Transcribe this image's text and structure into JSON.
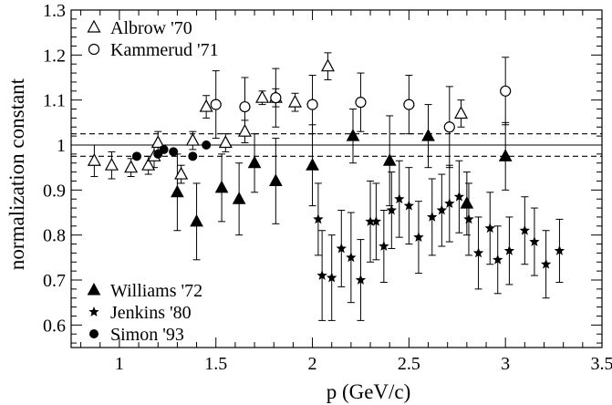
{
  "chart_data": {
    "type": "scatter",
    "title": "",
    "xlabel": "p (GeV/c)",
    "ylabel": "normalization constant",
    "xlim": [
      0.75,
      3.5
    ],
    "ylim": [
      0.55,
      1.3
    ],
    "xticks": [
      1,
      1.5,
      2,
      2.5,
      3,
      3.5
    ],
    "xtick_labels": [
      "1",
      "1.5",
      "2",
      "2.5",
      "3",
      "3.5"
    ],
    "yticks": [
      0.6,
      0.7,
      0.8,
      0.9,
      1,
      1.1,
      1.2,
      1.3
    ],
    "ytick_labels": [
      "0.6",
      "0.7",
      "0.8",
      "0.9",
      "1",
      "1.1",
      "1.2",
      "1.3"
    ],
    "grid": false,
    "reference_lines": [
      {
        "y": 1.0,
        "style": "solid"
      },
      {
        "y": 1.025,
        "style": "dashed"
      },
      {
        "y": 0.975,
        "style": "dashed"
      }
    ],
    "legend": [
      {
        "series": "Albrow '70",
        "placement": "top-left"
      },
      {
        "series": "Kammerud '71",
        "placement": "top-left"
      },
      {
        "series": "Williams '72",
        "placement": "bottom-left"
      },
      {
        "series": "Jenkins '80",
        "placement": "bottom-left"
      },
      {
        "series": "Simon '93",
        "placement": "bottom-left"
      }
    ],
    "series": [
      {
        "name": "Albrow '70",
        "marker": "triangle-open",
        "points": [
          {
            "x": 0.87,
            "y": 0.965,
            "err": 0.035
          },
          {
            "x": 0.96,
            "y": 0.955,
            "err": 0.03
          },
          {
            "x": 1.06,
            "y": 0.95,
            "err": 0.02
          },
          {
            "x": 1.15,
            "y": 0.955,
            "err": 0.02
          },
          {
            "x": 1.18,
            "y": 0.975,
            "err": 0.025
          },
          {
            "x": 1.2,
            "y": 1.005,
            "err": 0.025
          },
          {
            "x": 1.32,
            "y": 0.935,
            "err": 0.02
          },
          {
            "x": 1.38,
            "y": 1.01,
            "err": 0.02
          },
          {
            "x": 1.45,
            "y": 1.085,
            "err": 0.025
          },
          {
            "x": 1.55,
            "y": 1.005,
            "err": 0.02
          },
          {
            "x": 1.65,
            "y": 1.03,
            "err": 0.025
          },
          {
            "x": 1.74,
            "y": 1.105,
            "err": 0.015
          },
          {
            "x": 1.81,
            "y": 1.105,
            "err": 0.02
          },
          {
            "x": 1.91,
            "y": 1.095,
            "err": 0.02
          },
          {
            "x": 2.08,
            "y": 1.175,
            "err": 0.03
          },
          {
            "x": 2.77,
            "y": 1.07,
            "err": 0.03
          }
        ]
      },
      {
        "name": "Kammerud '71",
        "marker": "circle-open",
        "points": [
          {
            "x": 1.5,
            "y": 1.09,
            "err": 0.075
          },
          {
            "x": 1.65,
            "y": 1.085,
            "err": 0.065
          },
          {
            "x": 1.81,
            "y": 1.105,
            "err": 0.065
          },
          {
            "x": 2.0,
            "y": 1.09,
            "err": 0.065
          },
          {
            "x": 2.25,
            "y": 1.095,
            "err": 0.065
          },
          {
            "x": 2.5,
            "y": 1.09,
            "err": 0.065
          },
          {
            "x": 2.71,
            "y": 1.04,
            "err": 0.09
          },
          {
            "x": 3.0,
            "y": 1.12,
            "err": 0.075
          }
        ]
      },
      {
        "name": "Williams '72",
        "marker": "triangle-filled",
        "points": [
          {
            "x": 1.3,
            "y": 0.895,
            "err": 0.085
          },
          {
            "x": 1.4,
            "y": 0.83,
            "err": 0.085
          },
          {
            "x": 1.53,
            "y": 0.905,
            "err": 0.075
          },
          {
            "x": 1.62,
            "y": 0.88,
            "err": 0.08
          },
          {
            "x": 1.7,
            "y": 0.96,
            "err": 0.065
          },
          {
            "x": 1.81,
            "y": 0.92,
            "err": 0.095
          },
          {
            "x": 2.0,
            "y": 0.955,
            "err": 0.09
          },
          {
            "x": 2.21,
            "y": 1.02,
            "err": 0.06
          },
          {
            "x": 2.4,
            "y": 0.965,
            "err": 0.1
          },
          {
            "x": 2.6,
            "y": 1.02,
            "err": 0.07
          },
          {
            "x": 2.8,
            "y": 0.87,
            "err": 0.07
          },
          {
            "x": 3.0,
            "y": 0.975,
            "err": 0.075
          }
        ]
      },
      {
        "name": "Jenkins '80",
        "marker": "star-filled",
        "points": [
          {
            "x": 2.03,
            "y": 0.835,
            "err": 0.08
          },
          {
            "x": 2.05,
            "y": 0.71,
            "err": 0.1
          },
          {
            "x": 2.1,
            "y": 0.705,
            "err": 0.095
          },
          {
            "x": 2.15,
            "y": 0.77,
            "err": 0.085
          },
          {
            "x": 2.2,
            "y": 0.75,
            "err": 0.1
          },
          {
            "x": 2.25,
            "y": 0.7,
            "err": 0.09
          },
          {
            "x": 2.3,
            "y": 0.83,
            "err": 0.09
          },
          {
            "x": 2.33,
            "y": 0.83,
            "err": 0.085
          },
          {
            "x": 2.37,
            "y": 0.775,
            "err": 0.08
          },
          {
            "x": 2.41,
            "y": 0.855,
            "err": 0.085
          },
          {
            "x": 2.45,
            "y": 0.88,
            "err": 0.085
          },
          {
            "x": 2.5,
            "y": 0.865,
            "err": 0.085
          },
          {
            "x": 2.55,
            "y": 0.795,
            "err": 0.08
          },
          {
            "x": 2.62,
            "y": 0.84,
            "err": 0.085
          },
          {
            "x": 2.67,
            "y": 0.855,
            "err": 0.08
          },
          {
            "x": 2.71,
            "y": 0.87,
            "err": 0.085
          },
          {
            "x": 2.76,
            "y": 0.885,
            "err": 0.08
          },
          {
            "x": 2.81,
            "y": 0.835,
            "err": 0.08
          },
          {
            "x": 2.86,
            "y": 0.76,
            "err": 0.08
          },
          {
            "x": 2.92,
            "y": 0.815,
            "err": 0.08
          },
          {
            "x": 2.96,
            "y": 0.745,
            "err": 0.075
          },
          {
            "x": 3.02,
            "y": 0.765,
            "err": 0.075
          },
          {
            "x": 3.1,
            "y": 0.81,
            "err": 0.075
          },
          {
            "x": 3.15,
            "y": 0.785,
            "err": 0.075
          },
          {
            "x": 3.21,
            "y": 0.735,
            "err": 0.075
          },
          {
            "x": 3.28,
            "y": 0.765,
            "err": 0.07
          }
        ]
      },
      {
        "name": "Simon '93",
        "marker": "circle-filled",
        "points": [
          {
            "x": 1.09,
            "y": 0.975,
            "err": 0.0
          },
          {
            "x": 1.2,
            "y": 0.98,
            "err": 0.0
          },
          {
            "x": 1.23,
            "y": 0.99,
            "err": 0.0
          },
          {
            "x": 1.28,
            "y": 0.985,
            "err": 0.0
          },
          {
            "x": 1.38,
            "y": 0.975,
            "err": 0.0
          },
          {
            "x": 1.45,
            "y": 1.0,
            "err": 0.0
          }
        ]
      }
    ]
  }
}
